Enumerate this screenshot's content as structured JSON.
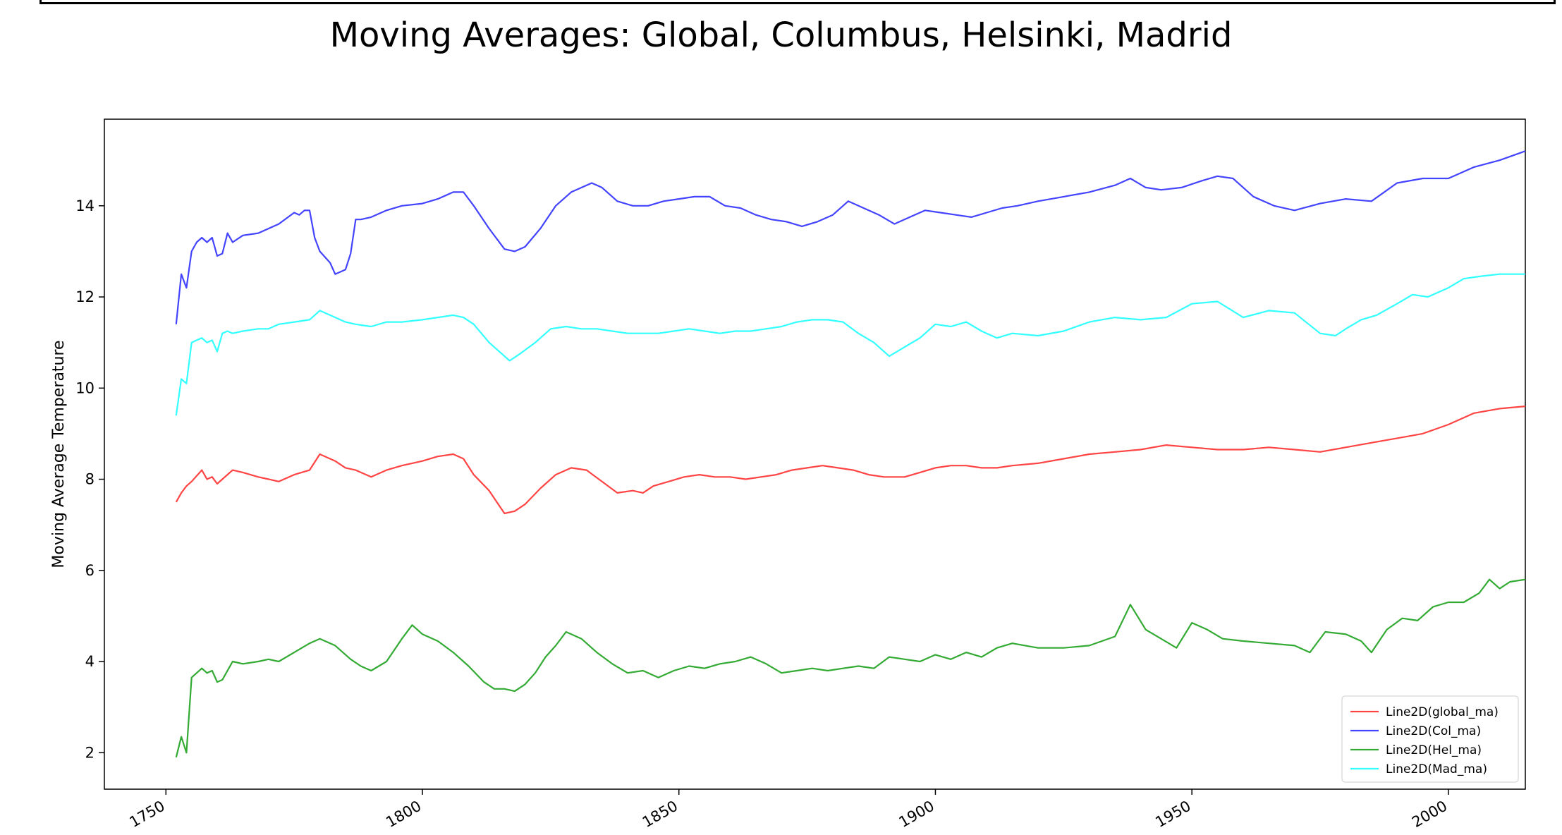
{
  "chart_data": {
    "type": "line",
    "title": "Moving Averages: Global, Columbus, Helsinki, Madrid",
    "xlabel": "",
    "ylabel": "Moving Average Temperature",
    "xlim": [
      1738,
      2015
    ],
    "ylim": [
      1.2,
      15.9
    ],
    "x_ticks": [
      "1750",
      "1800",
      "1850",
      "1900",
      "1950",
      "2000"
    ],
    "y_ticks": [
      "2",
      "4",
      "6",
      "8",
      "10",
      "12",
      "14"
    ],
    "grid": false,
    "legend_position": "lower-right",
    "series": [
      {
        "name": "Line2D(global_ma)",
        "color": "#ff4444",
        "x": [
          1752,
          1753,
          1754,
          1755,
          1757,
          1758,
          1759,
          1760,
          1761,
          1763,
          1765,
          1768,
          1770,
          1772,
          1775,
          1778,
          1780,
          1783,
          1785,
          1787,
          1790,
          1793,
          1796,
          1800,
          1803,
          1806,
          1808,
          1810,
          1813,
          1816,
          1818,
          1820,
          1823,
          1826,
          1829,
          1832,
          1835,
          1838,
          1841,
          1843,
          1845,
          1848,
          1851,
          1854,
          1857,
          1860,
          1863,
          1866,
          1869,
          1872,
          1875,
          1878,
          1881,
          1884,
          1887,
          1890,
          1894,
          1897,
          1900,
          1903,
          1906,
          1909,
          1912,
          1915,
          1920,
          1925,
          1930,
          1935,
          1940,
          1945,
          1950,
          1955,
          1960,
          1965,
          1970,
          1975,
          1980,
          1985,
          1990,
          1995,
          2000,
          2005,
          2010,
          2015
        ],
        "values": [
          7.5,
          7.7,
          7.85,
          7.95,
          8.2,
          8.0,
          8.05,
          7.9,
          8.0,
          8.2,
          8.15,
          8.05,
          8.0,
          7.95,
          8.1,
          8.2,
          8.55,
          8.4,
          8.25,
          8.2,
          8.05,
          8.2,
          8.3,
          8.4,
          8.5,
          8.55,
          8.45,
          8.1,
          7.75,
          7.25,
          7.3,
          7.45,
          7.8,
          8.1,
          8.25,
          8.2,
          7.95,
          7.7,
          7.75,
          7.7,
          7.85,
          7.95,
          8.05,
          8.1,
          8.05,
          8.05,
          8.0,
          8.05,
          8.1,
          8.2,
          8.25,
          8.3,
          8.25,
          8.2,
          8.1,
          8.05,
          8.05,
          8.15,
          8.25,
          8.3,
          8.3,
          8.25,
          8.25,
          8.3,
          8.35,
          8.45,
          8.55,
          8.6,
          8.65,
          8.75,
          8.7,
          8.65,
          8.65,
          8.7,
          8.65,
          8.6,
          8.7,
          8.8,
          8.9,
          9.0,
          9.2,
          9.45,
          9.55,
          9.6
        ]
      },
      {
        "name": "Line2D(Col_ma)",
        "color": "#4444ff",
        "x": [
          1752,
          1753,
          1754,
          1755,
          1756,
          1757,
          1758,
          1759,
          1760,
          1761,
          1762,
          1763,
          1765,
          1768,
          1770,
          1772,
          1775,
          1776,
          1777,
          1778,
          1779,
          1780,
          1782,
          1783,
          1785,
          1786,
          1787,
          1788,
          1790,
          1793,
          1796,
          1800,
          1803,
          1806,
          1808,
          1810,
          1813,
          1816,
          1818,
          1820,
          1823,
          1826,
          1829,
          1832,
          1833,
          1835,
          1838,
          1841,
          1844,
          1847,
          1850,
          1853,
          1856,
          1859,
          1862,
          1865,
          1868,
          1871,
          1874,
          1877,
          1880,
          1883,
          1886,
          1889,
          1892,
          1895,
          1898,
          1901,
          1904,
          1907,
          1910,
          1913,
          1916,
          1920,
          1925,
          1930,
          1935,
          1938,
          1941,
          1944,
          1948,
          1952,
          1955,
          1958,
          1962,
          1966,
          1970,
          1975,
          1980,
          1985,
          1990,
          1995,
          2000,
          2005,
          2010,
          2015
        ],
        "values": [
          11.4,
          12.5,
          12.2,
          13.0,
          13.2,
          13.3,
          13.2,
          13.3,
          12.9,
          12.95,
          13.4,
          13.2,
          13.35,
          13.4,
          13.5,
          13.6,
          13.85,
          13.8,
          13.9,
          13.9,
          13.3,
          13.0,
          12.75,
          12.5,
          12.6,
          12.95,
          13.7,
          13.7,
          13.75,
          13.9,
          14.0,
          14.05,
          14.15,
          14.3,
          14.3,
          14.0,
          13.5,
          13.05,
          13.0,
          13.1,
          13.5,
          14.0,
          14.3,
          14.45,
          14.5,
          14.4,
          14.1,
          14.0,
          14.0,
          14.1,
          14.15,
          14.2,
          14.2,
          14.0,
          13.95,
          13.8,
          13.7,
          13.65,
          13.55,
          13.65,
          13.8,
          14.1,
          13.95,
          13.8,
          13.6,
          13.75,
          13.9,
          13.85,
          13.8,
          13.75,
          13.85,
          13.95,
          14.0,
          14.1,
          14.2,
          14.3,
          14.45,
          14.6,
          14.4,
          14.35,
          14.4,
          14.55,
          14.65,
          14.6,
          14.2,
          14.0,
          13.9,
          14.05,
          14.15,
          14.1,
          14.5,
          14.6,
          14.6,
          14.85,
          15.0,
          15.2
        ]
      },
      {
        "name": "Line2D(Hel_ma)",
        "color": "#33aa33",
        "x": [
          1752,
          1753,
          1754,
          1755,
          1757,
          1758,
          1759,
          1760,
          1761,
          1763,
          1765,
          1768,
          1770,
          1772,
          1775,
          1778,
          1780,
          1783,
          1786,
          1788,
          1790,
          1793,
          1796,
          1798,
          1800,
          1803,
          1806,
          1809,
          1812,
          1814,
          1816,
          1818,
          1820,
          1822,
          1824,
          1826,
          1828,
          1831,
          1834,
          1837,
          1840,
          1843,
          1846,
          1849,
          1852,
          1855,
          1858,
          1861,
          1864,
          1867,
          1870,
          1873,
          1876,
          1879,
          1882,
          1885,
          1888,
          1891,
          1894,
          1897,
          1900,
          1903,
          1906,
          1909,
          1912,
          1915,
          1920,
          1925,
          1930,
          1935,
          1938,
          1941,
          1944,
          1947,
          1950,
          1953,
          1956,
          1960,
          1965,
          1970,
          1973,
          1976,
          1980,
          1983,
          1985,
          1988,
          1991,
          1994,
          1997,
          2000,
          2003,
          2006,
          2008,
          2010,
          2012,
          2015
        ],
        "values": [
          1.9,
          2.35,
          2.0,
          3.65,
          3.85,
          3.75,
          3.8,
          3.55,
          3.6,
          4.0,
          3.95,
          4.0,
          4.05,
          4.0,
          4.2,
          4.4,
          4.5,
          4.35,
          4.05,
          3.9,
          3.8,
          4.0,
          4.5,
          4.8,
          4.6,
          4.45,
          4.2,
          3.9,
          3.55,
          3.4,
          3.4,
          3.35,
          3.5,
          3.75,
          4.1,
          4.35,
          4.65,
          4.5,
          4.2,
          3.95,
          3.75,
          3.8,
          3.65,
          3.8,
          3.9,
          3.85,
          3.95,
          4.0,
          4.1,
          3.95,
          3.75,
          3.8,
          3.85,
          3.8,
          3.85,
          3.9,
          3.85,
          4.1,
          4.05,
          4.0,
          4.15,
          4.05,
          4.2,
          4.1,
          4.3,
          4.4,
          4.3,
          4.3,
          4.35,
          4.55,
          5.25,
          4.7,
          4.5,
          4.3,
          4.85,
          4.7,
          4.5,
          4.45,
          4.4,
          4.35,
          4.2,
          4.65,
          4.6,
          4.45,
          4.2,
          4.7,
          4.95,
          4.9,
          5.2,
          5.3,
          5.3,
          5.5,
          5.8,
          5.6,
          5.75,
          5.8
        ]
      },
      {
        "name": "Line2D(Mad_ma)",
        "color": "#33ffff",
        "x": [
          1752,
          1753,
          1754,
          1755,
          1756,
          1757,
          1758,
          1759,
          1760,
          1761,
          1762,
          1763,
          1765,
          1768,
          1770,
          1772,
          1775,
          1778,
          1780,
          1782,
          1785,
          1787,
          1790,
          1793,
          1796,
          1800,
          1803,
          1806,
          1808,
          1810,
          1813,
          1815,
          1817,
          1819,
          1822,
          1825,
          1828,
          1831,
          1834,
          1837,
          1840,
          1843,
          1846,
          1849,
          1852,
          1855,
          1858,
          1861,
          1864,
          1867,
          1870,
          1873,
          1876,
          1879,
          1882,
          1885,
          1888,
          1891,
          1894,
          1897,
          1900,
          1903,
          1906,
          1909,
          1912,
          1915,
          1920,
          1925,
          1930,
          1935,
          1940,
          1945,
          1950,
          1955,
          1960,
          1965,
          1970,
          1975,
          1978,
          1980,
          1983,
          1986,
          1990,
          1993,
          1996,
          2000,
          2003,
          2006,
          2010,
          2015
        ],
        "values": [
          9.4,
          10.2,
          10.1,
          11.0,
          11.05,
          11.1,
          11.0,
          11.05,
          10.8,
          11.2,
          11.25,
          11.2,
          11.25,
          11.3,
          11.3,
          11.4,
          11.45,
          11.5,
          11.7,
          11.6,
          11.45,
          11.4,
          11.35,
          11.45,
          11.45,
          11.5,
          11.55,
          11.6,
          11.55,
          11.4,
          11.0,
          10.8,
          10.6,
          10.75,
          11.0,
          11.3,
          11.35,
          11.3,
          11.3,
          11.25,
          11.2,
          11.2,
          11.2,
          11.25,
          11.3,
          11.25,
          11.2,
          11.25,
          11.25,
          11.3,
          11.35,
          11.45,
          11.5,
          11.5,
          11.45,
          11.2,
          11.0,
          10.7,
          10.9,
          11.1,
          11.4,
          11.35,
          11.45,
          11.25,
          11.1,
          11.2,
          11.15,
          11.25,
          11.45,
          11.55,
          11.5,
          11.55,
          11.85,
          11.9,
          11.55,
          11.7,
          11.65,
          11.2,
          11.15,
          11.3,
          11.5,
          11.6,
          11.85,
          12.05,
          12.0,
          12.2,
          12.4,
          12.45,
          12.5,
          12.5
        ]
      }
    ]
  }
}
